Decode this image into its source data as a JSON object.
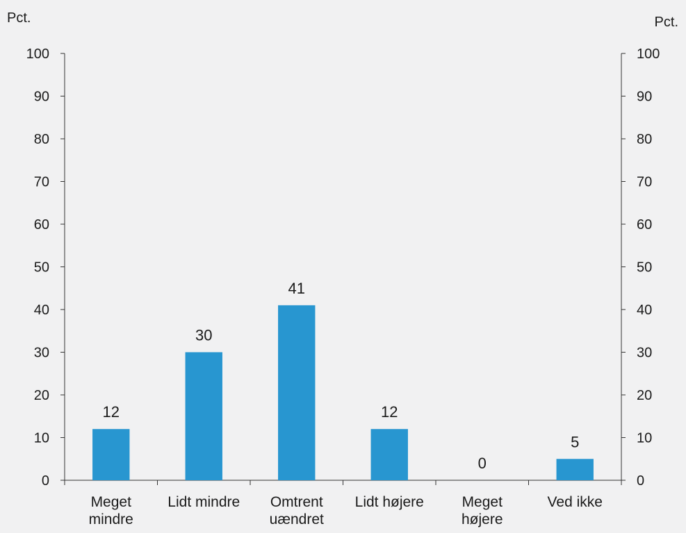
{
  "chart_data": {
    "type": "bar",
    "title": "",
    "xlabel": "",
    "ylabel": "",
    "y_unit_left": "Pct.",
    "y_unit_right": "Pct.",
    "ylim": [
      0,
      100
    ],
    "yticks": [
      0,
      10,
      20,
      30,
      40,
      50,
      60,
      70,
      80,
      90,
      100
    ],
    "categories": [
      [
        "Meget",
        "mindre"
      ],
      [
        "Lidt mindre"
      ],
      [
        "Omtrent",
        "uændret"
      ],
      [
        "Lidt højere"
      ],
      [
        "Meget",
        "højere"
      ],
      [
        "Ved ikke"
      ]
    ],
    "values": [
      12,
      30,
      41,
      12,
      0,
      5
    ],
    "data_labels": [
      "12",
      "30",
      "41",
      "12",
      "0",
      "5"
    ],
    "bar_color": "#2896d0",
    "grid": false,
    "legend": "none"
  }
}
